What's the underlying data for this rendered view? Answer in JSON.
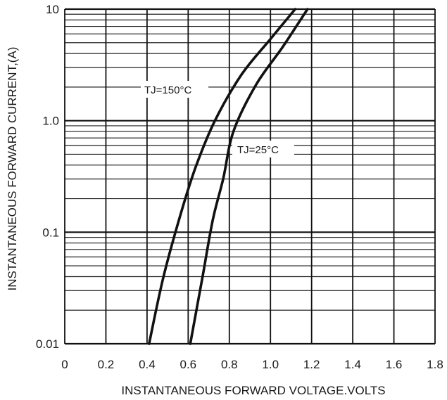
{
  "chart_data": {
    "type": "line",
    "title": "",
    "xlabel": "INSTANTANEOUS FORWARD VOLTAGE.VOLTS",
    "ylabel": "INSTANTANEOUS FORWARD CURRENT,(A)",
    "xlim": [
      0,
      1.8
    ],
    "ylim": [
      0.01,
      10
    ],
    "yscale": "log",
    "grid": true,
    "x_ticks": [
      0,
      0.2,
      0.4,
      0.6,
      0.8,
      1.0,
      1.2,
      1.4,
      1.6,
      1.8
    ],
    "x_tick_labels": [
      "0",
      "0.2",
      "0.4",
      "0.6",
      "0.8",
      "1.0",
      "1.2",
      "1.4",
      "1.6",
      "1.8"
    ],
    "y_ticks": [
      0.01,
      0.1,
      1,
      10
    ],
    "y_tick_labels": [
      "0.01",
      "0.1",
      "1.0",
      "10"
    ],
    "series": [
      {
        "name": "TJ=150°C",
        "color": "#111111",
        "points": [
          [
            0.41,
            0.01
          ],
          [
            0.48,
            0.04
          ],
          [
            0.57,
            0.16
          ],
          [
            0.64,
            0.4
          ],
          [
            0.73,
            1.0
          ],
          [
            0.86,
            2.6
          ],
          [
            1.0,
            5.4
          ],
          [
            1.12,
            10
          ]
        ]
      },
      {
        "name": "TJ=25°C",
        "color": "#111111",
        "points": [
          [
            0.61,
            0.01
          ],
          [
            0.67,
            0.04
          ],
          [
            0.72,
            0.13
          ],
          [
            0.77,
            0.3
          ],
          [
            0.82,
            0.8
          ],
          [
            0.93,
            2.1
          ],
          [
            1.06,
            4.6
          ],
          [
            1.18,
            10
          ]
        ]
      }
    ]
  },
  "labels": {
    "tj150": "TJ=150°C",
    "tj25": "TJ=25°C"
  }
}
